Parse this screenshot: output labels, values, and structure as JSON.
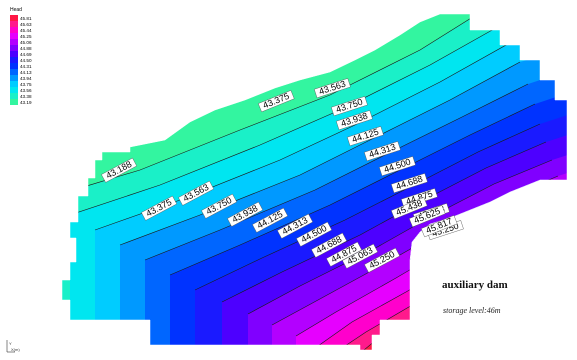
{
  "legend": {
    "title": "Head",
    "values": [
      "45.81",
      "45.63",
      "45.44",
      "45.25",
      "45.06",
      "44.88",
      "44.69",
      "44.50",
      "44.31",
      "44.13",
      "43.94",
      "43.75",
      "43.56",
      "43.38",
      "43.19"
    ],
    "colors": [
      "#ff1744",
      "#ff1a8c",
      "#ff00cc",
      "#e600ff",
      "#b300ff",
      "#8000ff",
      "#4d00ff",
      "#1a1aff",
      "#0033ff",
      "#0066ff",
      "#0099ff",
      "#00ccff",
      "#00e6f0",
      "#1af0c8",
      "#33f5a0"
    ]
  },
  "contour_labels": [
    "43.188",
    "43.375",
    "43.563",
    "43.750",
    "43.938",
    "44.125",
    "44.313",
    "44.500",
    "44.688",
    "44.875",
    "45.063",
    "45.250",
    "43.375",
    "43.563",
    "43.750",
    "43.938",
    "44.125",
    "44.313",
    "44.500",
    "44.688",
    "44.875",
    "45.063",
    "45.250",
    "45.438",
    "45.625",
    "45.817"
  ],
  "annotation": {
    "title": "auxiliary dam",
    "subtitle": "storage level:46m"
  },
  "axis_indicator": "Y\nX(m)"
}
